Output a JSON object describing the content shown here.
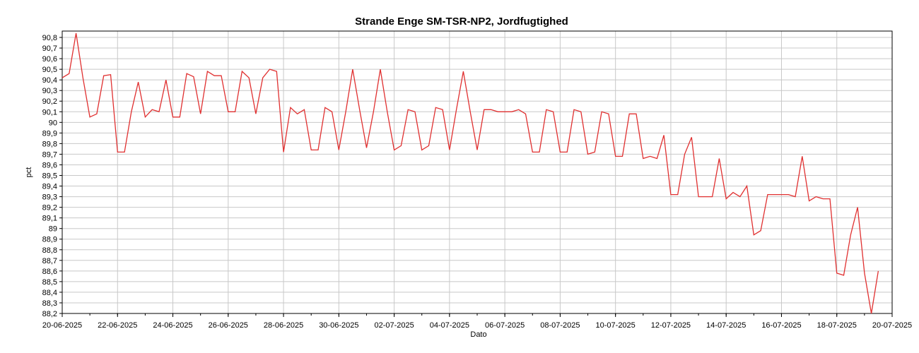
{
  "chart_data": {
    "type": "line",
    "title": "Strande Enge SM-TSR-NP2, Jordfugtighed",
    "xlabel": "Dato",
    "ylabel": "pct",
    "xlim": [
      "2025-06-20",
      "2025-07-20"
    ],
    "ylim": [
      88.2,
      90.86
    ],
    "grid": true,
    "y_ticks": [
      "88,2",
      "88,3",
      "88,4",
      "88,5",
      "88,6",
      "88,7",
      "88,8",
      "88,9",
      "89",
      "89,1",
      "89,2",
      "89,3",
      "89,4",
      "89,5",
      "89,6",
      "89,7",
      "89,8",
      "89,9",
      "90",
      "90,1",
      "90,2",
      "90,3",
      "90,4",
      "90,5",
      "90,6",
      "90,7",
      "90,8"
    ],
    "x_ticks": [
      "20-06-2025",
      "22-06-2025",
      "24-06-2025",
      "26-06-2025",
      "28-06-2025",
      "30-06-2025",
      "02-07-2025",
      "04-07-2025",
      "06-07-2025",
      "08-07-2025",
      "10-07-2025",
      "12-07-2025",
      "14-07-2025",
      "16-07-2025",
      "18-07-2025",
      "20-07-2025"
    ],
    "colors": {
      "series": "#e03030",
      "grid": "#c8c8c8",
      "axis": "#000000"
    },
    "series": [
      {
        "x": [
          "2025-06-20",
          "2025-06-20 06:00",
          "2025-06-20 12:00",
          "2025-06-20 18:00",
          "2025-06-21 00:00",
          "2025-06-21 06:00",
          "2025-06-21 12:00",
          "2025-06-21 18:00",
          "2025-06-22 00:00",
          "2025-06-22 06:00",
          "2025-06-22 12:00",
          "2025-06-22 18:00",
          "2025-06-23 00:00",
          "2025-06-23 06:00",
          "2025-06-23 12:00",
          "2025-06-23 18:00",
          "2025-06-24 00:00",
          "2025-06-24 06:00",
          "2025-06-24 12:00",
          "2025-06-24 18:00",
          "2025-06-25 00:00",
          "2025-06-25 06:00",
          "2025-06-25 12:00",
          "2025-06-25 18:00",
          "2025-06-26 00:00",
          "2025-06-26 06:00",
          "2025-06-26 12:00",
          "2025-06-26 18:00",
          "2025-06-27 00:00",
          "2025-06-27 06:00",
          "2025-06-27 12:00",
          "2025-06-27 18:00",
          "2025-06-28 00:00",
          "2025-06-28 06:00",
          "2025-06-28 12:00",
          "2025-06-28 18:00",
          "2025-06-29 00:00",
          "2025-06-29 06:00",
          "2025-06-29 12:00",
          "2025-06-29 18:00",
          "2025-06-30 00:00",
          "2025-06-30 06:00",
          "2025-06-30 12:00",
          "2025-06-30 18:00",
          "2025-07-01 00:00",
          "2025-07-01 06:00",
          "2025-07-01 12:00",
          "2025-07-01 18:00",
          "2025-07-02 00:00",
          "2025-07-02 06:00",
          "2025-07-02 12:00",
          "2025-07-02 18:00",
          "2025-07-03 00:00",
          "2025-07-03 06:00",
          "2025-07-03 12:00",
          "2025-07-03 18:00",
          "2025-07-04 00:00",
          "2025-07-04 06:00",
          "2025-07-04 12:00",
          "2025-07-04 18:00",
          "2025-07-05 00:00",
          "2025-07-05 06:00",
          "2025-07-05 12:00",
          "2025-07-05 18:00",
          "2025-07-06 00:00",
          "2025-07-06 06:00",
          "2025-07-06 12:00",
          "2025-07-06 18:00",
          "2025-07-07 00:00",
          "2025-07-07 06:00",
          "2025-07-07 12:00",
          "2025-07-07 18:00",
          "2025-07-08 00:00",
          "2025-07-08 06:00",
          "2025-07-08 12:00",
          "2025-07-08 18:00",
          "2025-07-09 00:00",
          "2025-07-09 06:00",
          "2025-07-09 12:00",
          "2025-07-09 18:00",
          "2025-07-10 00:00",
          "2025-07-10 06:00",
          "2025-07-10 12:00",
          "2025-07-10 18:00",
          "2025-07-11 00:00",
          "2025-07-11 06:00",
          "2025-07-11 12:00",
          "2025-07-11 18:00",
          "2025-07-12 00:00",
          "2025-07-12 06:00",
          "2025-07-12 12:00",
          "2025-07-12 18:00",
          "2025-07-13 00:00",
          "2025-07-13 06:00",
          "2025-07-13 12:00",
          "2025-07-13 18:00",
          "2025-07-14 00:00",
          "2025-07-14 06:00",
          "2025-07-14 12:00",
          "2025-07-14 18:00",
          "2025-07-15 00:00",
          "2025-07-15 06:00",
          "2025-07-15 12:00",
          "2025-07-15 18:00",
          "2025-07-16 00:00",
          "2025-07-16 06:00",
          "2025-07-16 12:00",
          "2025-07-16 18:00",
          "2025-07-17 00:00",
          "2025-07-17 06:00",
          "2025-07-17 12:00",
          "2025-07-17 18:00",
          "2025-07-18 00:00",
          "2025-07-18 06:00",
          "2025-07-18 12:00",
          "2025-07-18 18:00",
          "2025-07-19 00:00",
          "2025-07-19 06:00",
          "2025-07-19 12:00"
        ],
        "values": [
          90.42,
          90.46,
          90.84,
          90.42,
          90.05,
          90.08,
          90.44,
          90.45,
          89.72,
          89.72,
          90.1,
          90.38,
          90.05,
          90.12,
          90.1,
          90.4,
          90.05,
          90.05,
          90.46,
          90.43,
          90.08,
          90.48,
          90.44,
          90.44,
          90.1,
          90.1,
          90.48,
          90.42,
          90.08,
          90.42,
          90.5,
          90.48,
          89.72,
          90.14,
          90.08,
          90.12,
          89.74,
          89.74,
          90.14,
          90.1,
          89.74,
          90.1,
          90.5,
          90.12,
          89.76,
          90.1,
          90.5,
          90.1,
          89.74,
          89.78,
          90.12,
          90.1,
          89.74,
          89.78,
          90.14,
          90.12,
          89.74,
          90.12,
          90.48,
          90.1,
          89.74,
          90.12,
          90.12,
          90.1,
          90.1,
          90.1,
          90.12,
          90.08,
          89.72,
          89.72,
          90.12,
          90.1,
          89.72,
          89.72,
          90.12,
          90.1,
          89.7,
          89.72,
          90.1,
          90.08,
          89.68,
          89.68,
          90.08,
          90.08,
          89.66,
          89.68,
          89.66,
          89.88,
          89.32,
          89.32,
          89.7,
          89.86,
          89.3,
          89.3,
          89.3,
          89.66,
          89.28,
          89.34,
          89.3,
          89.4,
          88.94,
          88.98,
          89.32,
          89.32,
          89.32,
          89.32,
          89.3,
          89.68,
          89.26,
          89.3,
          89.28,
          89.28,
          88.58,
          88.56,
          88.94,
          89.2,
          88.58,
          88.2,
          88.6
        ]
      }
    ]
  }
}
